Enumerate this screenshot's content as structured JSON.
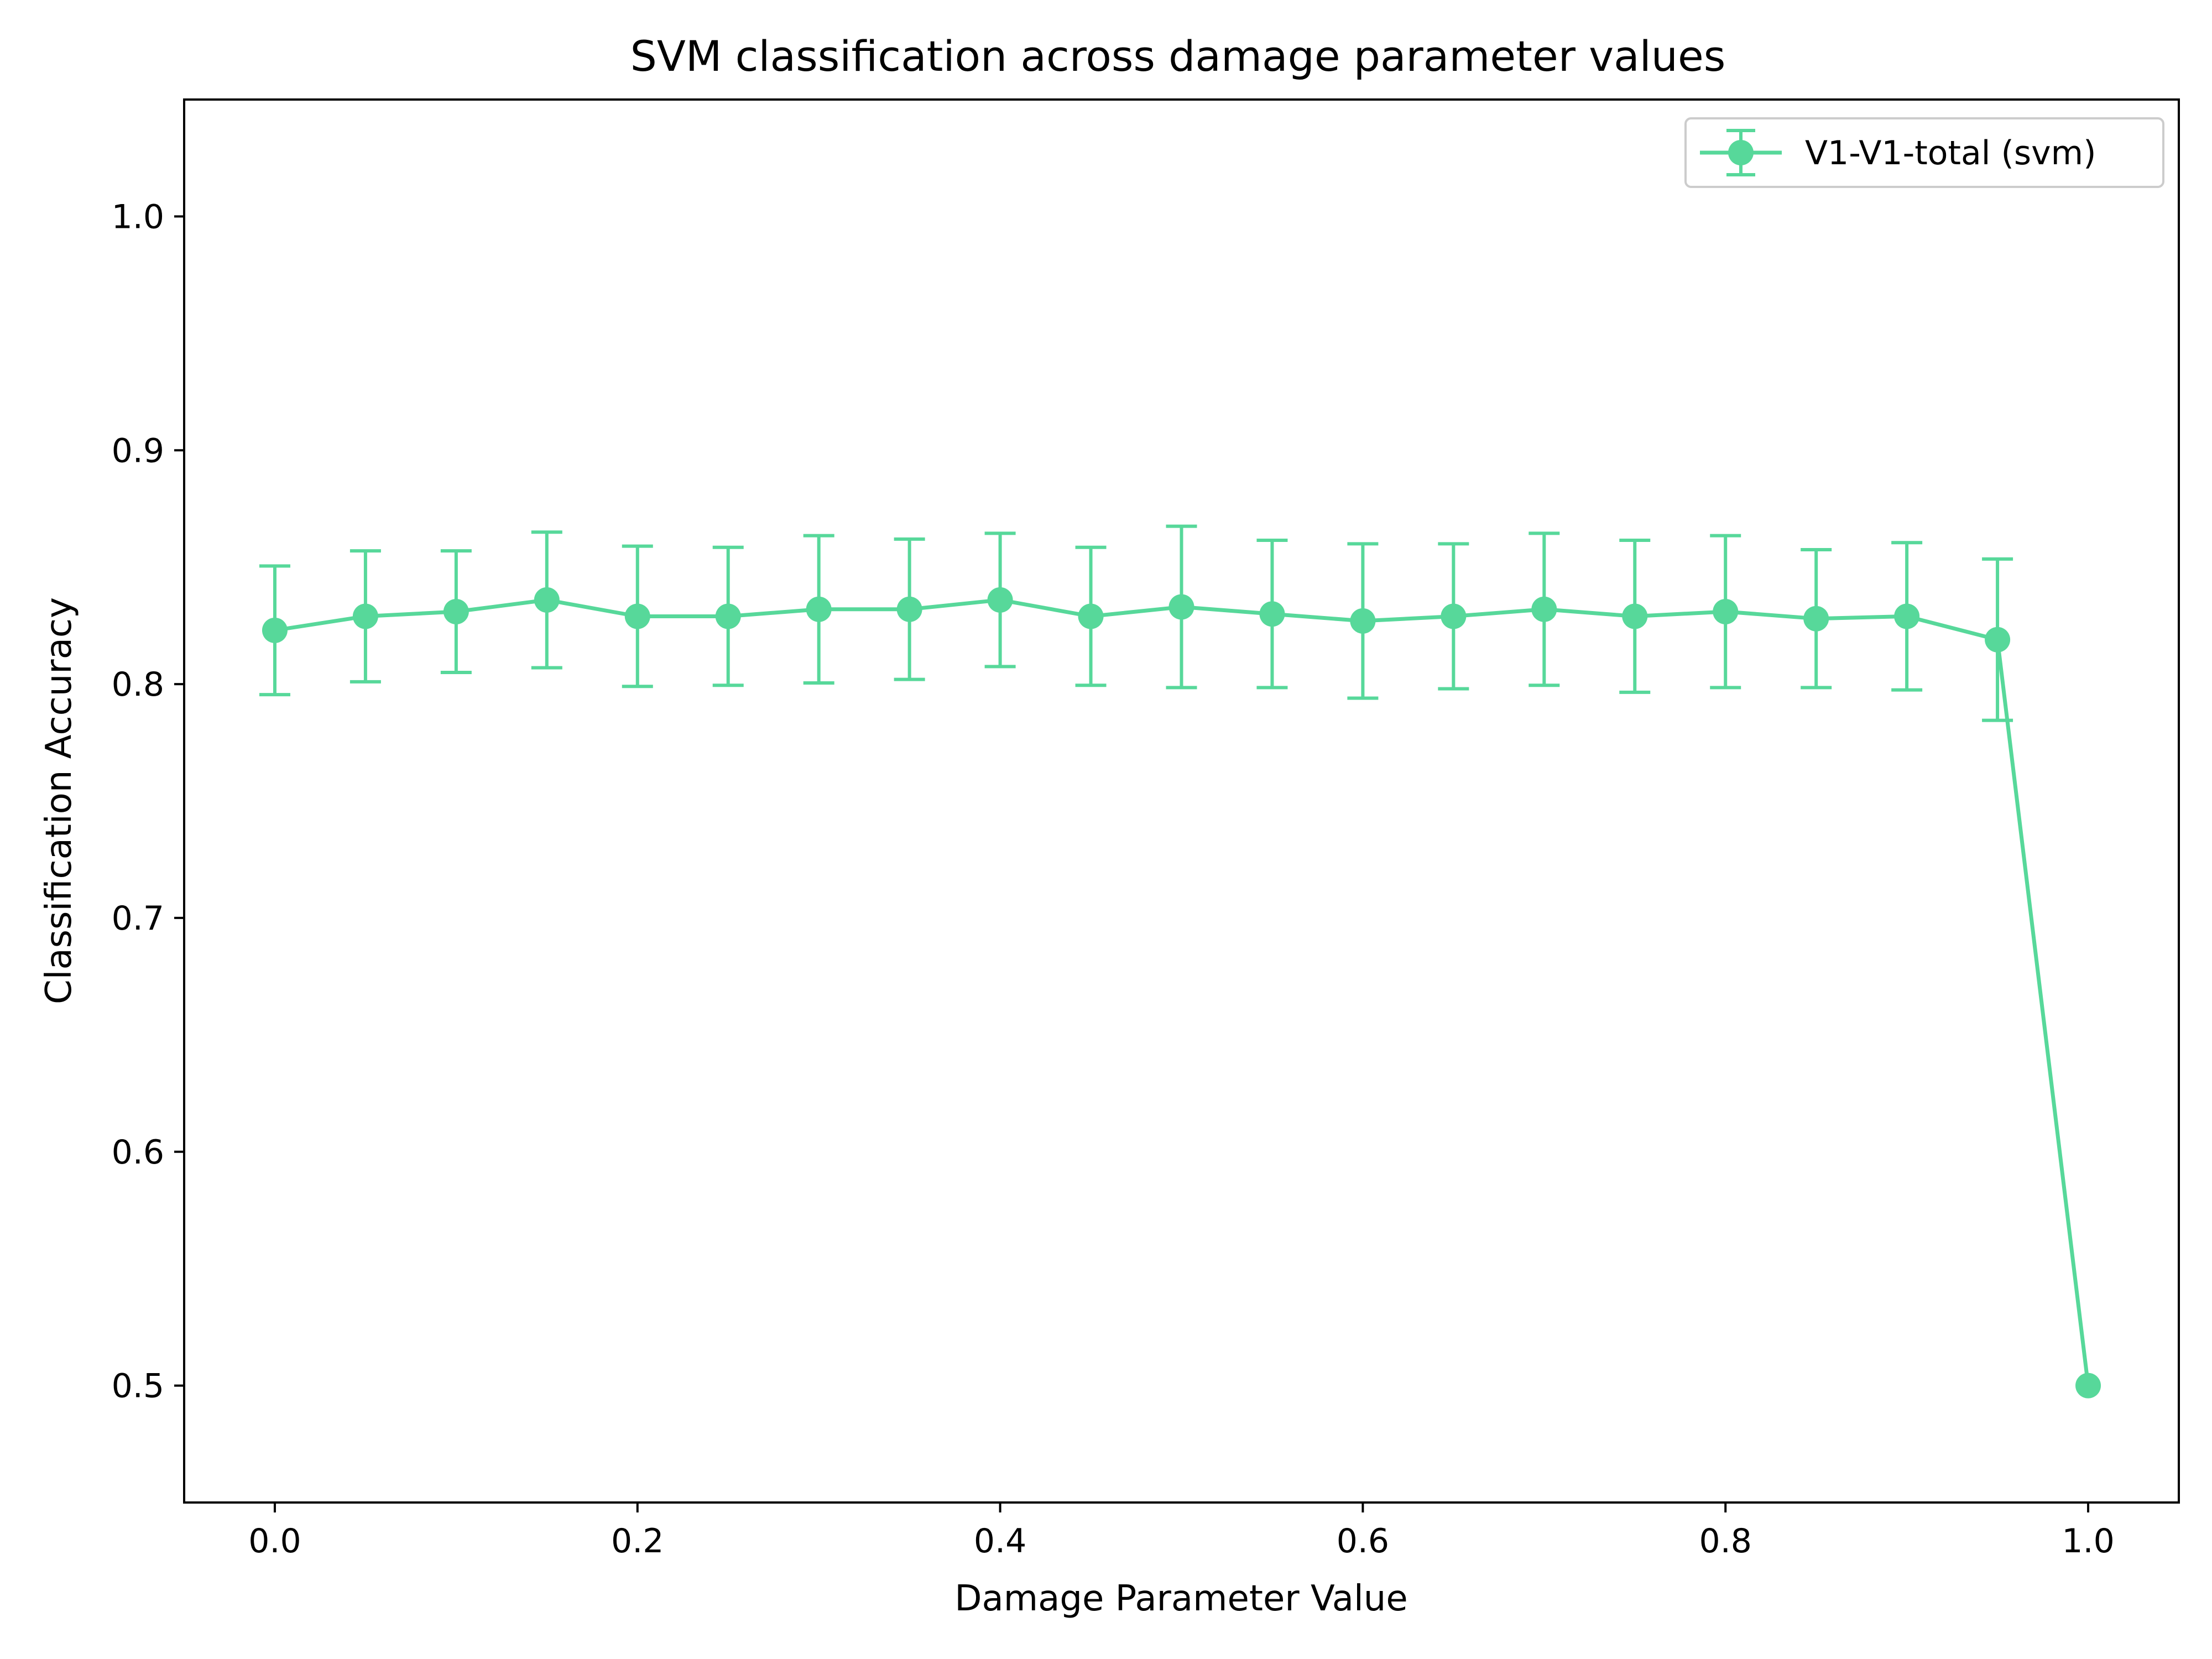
{
  "chart_data": {
    "type": "line",
    "title": "SVM classification across damage parameter values",
    "xlabel": "Damage Parameter Value",
    "ylabel": "Classification Accuracy",
    "xlim": [
      -0.05,
      1.05
    ],
    "ylim": [
      0.45,
      1.05
    ],
    "xticks": [
      "0.0",
      "0.2",
      "0.4",
      "0.6",
      "0.8",
      "1.0"
    ],
    "yticks": [
      "0.5",
      "0.6",
      "0.7",
      "0.8",
      "0.9",
      "1.0"
    ],
    "grid": false,
    "legend_position": "top-right",
    "series": [
      {
        "name": "V1-V1-total (svm)",
        "color": "#57d89a",
        "marker": "circle",
        "x": [
          0.0,
          0.05,
          0.1,
          0.15,
          0.2,
          0.25,
          0.3,
          0.35,
          0.4,
          0.45,
          0.5,
          0.55,
          0.6,
          0.65,
          0.7,
          0.75,
          0.8,
          0.85,
          0.9,
          0.95,
          1.0
        ],
        "y": [
          0.823,
          0.829,
          0.831,
          0.836,
          0.829,
          0.829,
          0.832,
          0.832,
          0.836,
          0.829,
          0.833,
          0.83,
          0.827,
          0.829,
          0.832,
          0.829,
          0.831,
          0.828,
          0.829,
          0.819,
          0.5
        ],
        "yerr": [
          0.0275,
          0.028,
          0.026,
          0.029,
          0.03,
          0.0295,
          0.0315,
          0.03,
          0.0285,
          0.0295,
          0.0345,
          0.0315,
          0.033,
          0.031,
          0.0325,
          0.0325,
          0.0325,
          0.0295,
          0.0315,
          0.0345,
          0.0
        ]
      }
    ]
  }
}
